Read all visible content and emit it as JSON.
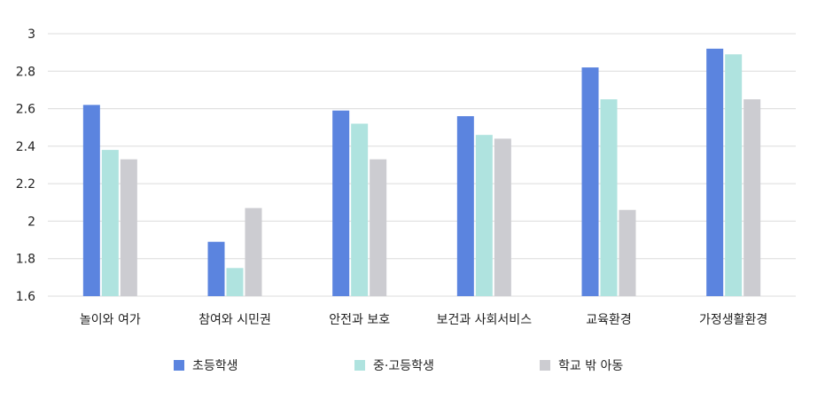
{
  "chart_data": {
    "type": "bar",
    "categories": [
      "놀이와 여가",
      "참여와 시민권",
      "안전과 보호",
      "보건과 사회서비스",
      "교육환경",
      "가정생활환경"
    ],
    "series": [
      {
        "name": "초등학생",
        "color": "#5b84df",
        "values": [
          2.62,
          1.89,
          2.59,
          2.56,
          2.82,
          2.92
        ]
      },
      {
        "name": "중·고등학생",
        "color": "#afe3df",
        "values": [
          2.38,
          1.75,
          2.52,
          2.46,
          2.65,
          2.89
        ]
      },
      {
        "name": "학교 밖 아동",
        "color": "#ccccd1",
        "values": [
          2.33,
          2.07,
          2.33,
          2.44,
          2.06,
          2.65
        ]
      }
    ],
    "ylim": [
      1.6,
      3.0
    ],
    "yticks": [
      "1.6",
      "1.8",
      "2",
      "2.2",
      "2.4",
      "2.6",
      "2.8",
      "3"
    ],
    "grid": true,
    "legend_position": "bottom"
  }
}
